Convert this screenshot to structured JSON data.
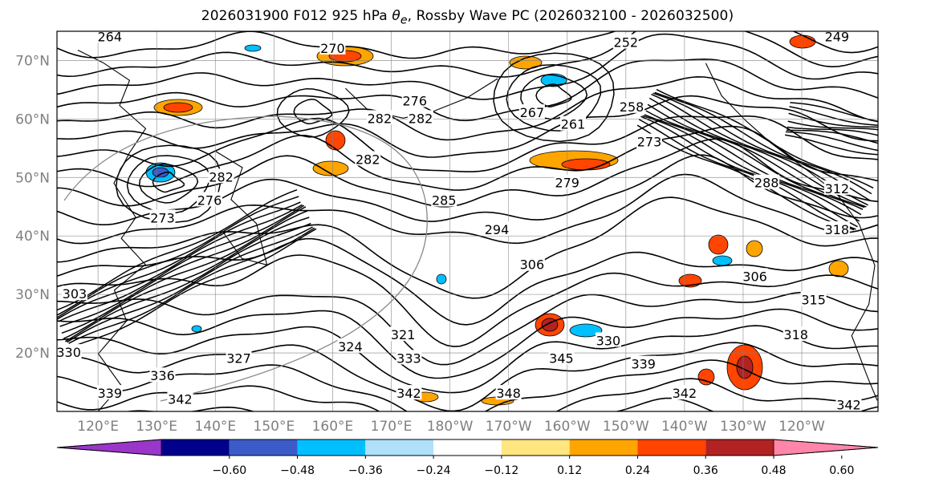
{
  "title": "2026031900 F012 925 hPa θe, Rossby Wave PC (2026032100 - 2026032500)",
  "title_parts": {
    "prefix": "2026031900 F012 925 hPa ",
    "theta": "θ",
    "sub": "e",
    "suffix": ", Rossby Wave PC (2026032100 - 2026032500)"
  },
  "map": {
    "lat_labels": [
      "70°N",
      "60°N",
      "50°N",
      "40°N",
      "30°N",
      "20°N"
    ],
    "lat_values": [
      70,
      60,
      50,
      40,
      30,
      20
    ],
    "lon_labels": [
      "120°E",
      "130°E",
      "140°E",
      "150°E",
      "160°E",
      "170°E",
      "180°W",
      "170°W",
      "160°W",
      "150°W",
      "140°W",
      "130°W",
      "120°W"
    ],
    "lon_values": [
      120,
      130,
      140,
      150,
      160,
      170,
      180,
      190,
      200,
      210,
      220,
      230,
      240
    ],
    "lon_range": [
      113,
      253
    ],
    "lat_range": [
      10,
      75
    ],
    "contour_labels": [
      {
        "text": "264",
        "lon": 122,
        "lat": 74
      },
      {
        "text": "270",
        "lon": 160,
        "lat": 72
      },
      {
        "text": "252",
        "lon": 210,
        "lat": 73
      },
      {
        "text": "249",
        "lon": 246,
        "lat": 74
      },
      {
        "text": "276",
        "lon": 174,
        "lat": 63
      },
      {
        "text": "282",
        "lon": 168,
        "lat": 60
      },
      {
        "text": "282",
        "lon": 175,
        "lat": 60
      },
      {
        "text": "267",
        "lon": 194,
        "lat": 61
      },
      {
        "text": "261",
        "lon": 201,
        "lat": 59
      },
      {
        "text": "258",
        "lon": 211,
        "lat": 62
      },
      {
        "text": "273",
        "lon": 214,
        "lat": 56
      },
      {
        "text": "282",
        "lon": 166,
        "lat": 53
      },
      {
        "text": "282",
        "lon": 141,
        "lat": 50
      },
      {
        "text": "276",
        "lon": 139,
        "lat": 46
      },
      {
        "text": "273",
        "lon": 131,
        "lat": 43
      },
      {
        "text": "279",
        "lon": 200,
        "lat": 49
      },
      {
        "text": "285",
        "lon": 179,
        "lat": 46
      },
      {
        "text": "288",
        "lon": 234,
        "lat": 49
      },
      {
        "text": "294",
        "lon": 188,
        "lat": 41
      },
      {
        "text": "306",
        "lon": 194,
        "lat": 35
      },
      {
        "text": "306",
        "lon": 232,
        "lat": 33
      },
      {
        "text": "303",
        "lon": 116,
        "lat": 30
      },
      {
        "text": "312",
        "lon": 246,
        "lat": 48
      },
      {
        "text": "318",
        "lon": 246,
        "lat": 41
      },
      {
        "text": "315",
        "lon": 242,
        "lat": 29
      },
      {
        "text": "318",
        "lon": 239,
        "lat": 23
      },
      {
        "text": "321",
        "lon": 172,
        "lat": 23
      },
      {
        "text": "324",
        "lon": 163,
        "lat": 21
      },
      {
        "text": "327",
        "lon": 144,
        "lat": 19
      },
      {
        "text": "330",
        "lon": 115,
        "lat": 20
      },
      {
        "text": "333",
        "lon": 173,
        "lat": 19
      },
      {
        "text": "330",
        "lon": 207,
        "lat": 22
      },
      {
        "text": "339",
        "lon": 213,
        "lat": 18
      },
      {
        "text": "345",
        "lon": 199,
        "lat": 19
      },
      {
        "text": "336",
        "lon": 131,
        "lat": 16
      },
      {
        "text": "339",
        "lon": 122,
        "lat": 13
      },
      {
        "text": "342",
        "lon": 134,
        "lat": 12
      },
      {
        "text": "342",
        "lon": 173,
        "lat": 13
      },
      {
        "text": "348",
        "lon": 190,
        "lat": 13
      },
      {
        "text": "342",
        "lon": 220,
        "lat": 13
      },
      {
        "text": "342",
        "lon": 248,
        "lat": 11
      }
    ]
  },
  "colorbar": {
    "tick_labels": [
      "−0.60",
      "−0.48",
      "−0.36",
      "−0.24",
      "−0.12",
      "0.12",
      "0.24",
      "0.36",
      "0.48",
      "0.60"
    ],
    "tick_values": [
      -0.6,
      -0.48,
      -0.36,
      -0.24,
      -0.12,
      0.12,
      0.24,
      0.36,
      0.48,
      0.6
    ],
    "colors": [
      "#9a36c9",
      "#00008b",
      "#3b5bc8",
      "#00bfff",
      "#b0e0fa",
      "#ffffff",
      "#ffe680",
      "#ffa500",
      "#ff4500",
      "#b22222",
      "#ff85aa"
    ],
    "extend": "both"
  },
  "colors": {
    "contour": "#000000",
    "grid": "#808080",
    "axis_label": "#7f7f7f",
    "great_circle": "#888888"
  }
}
